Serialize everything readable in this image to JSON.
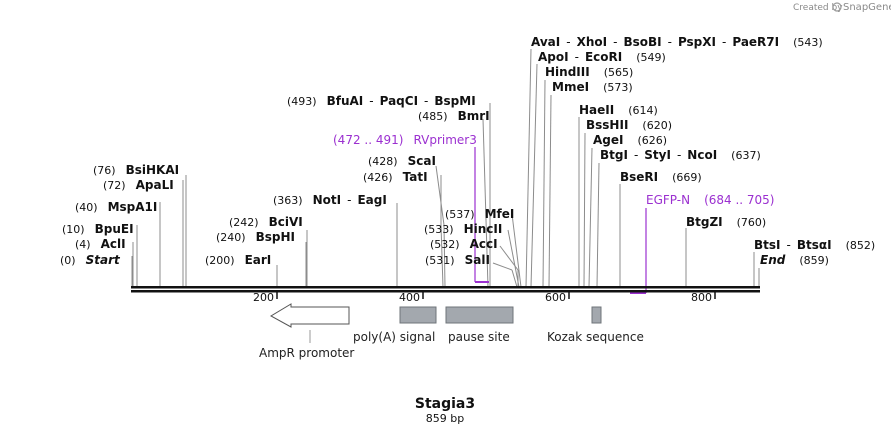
{
  "brand": {
    "created_by": "Created by",
    "name": "SnapGene"
  },
  "title": "Stagia3",
  "length": "859 bp",
  "ticks": [
    "200",
    "400",
    "600",
    "800"
  ],
  "sites": [
    {
      "id": "start",
      "pos": "(0)",
      "names": [
        "Start"
      ],
      "italic": true
    },
    {
      "id": "acli",
      "pos": "(4)",
      "names": [
        "AclI"
      ]
    },
    {
      "id": "bpuei",
      "pos": "(10)",
      "names": [
        "BpuEI"
      ]
    },
    {
      "id": "mspa1i",
      "pos": "(40)",
      "names": [
        "MspA1I"
      ]
    },
    {
      "id": "apali",
      "pos": "(72)",
      "names": [
        "ApaLI"
      ]
    },
    {
      "id": "bsihkai",
      "pos": "(76)",
      "names": [
        "BsiHKAI"
      ]
    },
    {
      "id": "eari",
      "pos": "(200)",
      "names": [
        "EarI"
      ]
    },
    {
      "id": "bsphi",
      "pos": "(240)",
      "names": [
        "BspHI"
      ]
    },
    {
      "id": "bcivi",
      "pos": "(242)",
      "names": [
        "BciVI"
      ]
    },
    {
      "id": "noti",
      "pos": "(363)",
      "names": [
        "NotI",
        "EagI"
      ]
    },
    {
      "id": "tati",
      "pos": "(426)",
      "names": [
        "TatI"
      ]
    },
    {
      "id": "scai",
      "pos": "(428)",
      "names": [
        "ScaI"
      ]
    },
    {
      "id": "bmri",
      "pos": "(485)",
      "names": [
        "BmrI"
      ]
    },
    {
      "id": "bfuai",
      "pos": "(493)",
      "names": [
        "BfuAI",
        "PaqCI",
        "BspMI"
      ]
    },
    {
      "id": "sali",
      "pos": "(531)",
      "names": [
        "SalI"
      ]
    },
    {
      "id": "acci",
      "pos": "(532)",
      "names": [
        "AccI"
      ]
    },
    {
      "id": "hincii",
      "pos": "(533)",
      "names": [
        "HincII"
      ]
    },
    {
      "id": "mfei",
      "pos": "(537)",
      "names": [
        "MfeI"
      ]
    },
    {
      "id": "avai",
      "pos": "(543)",
      "names": [
        "AvaI",
        "XhoI",
        "BsoBI",
        "PspXI",
        "PaeR7I"
      ]
    },
    {
      "id": "apoi",
      "pos": "(549)",
      "names": [
        "ApoI",
        "EcoRI"
      ]
    },
    {
      "id": "hindiii",
      "pos": "(565)",
      "names": [
        "HindIII"
      ]
    },
    {
      "id": "mmei",
      "pos": "(573)",
      "names": [
        "MmeI"
      ]
    },
    {
      "id": "haeii",
      "pos": "(614)",
      "names": [
        "HaeII"
      ]
    },
    {
      "id": "bsshii",
      "pos": "(620)",
      "names": [
        "BssHII"
      ]
    },
    {
      "id": "agei",
      "pos": "(626)",
      "names": [
        "AgeI"
      ]
    },
    {
      "id": "btgi",
      "pos": "(637)",
      "names": [
        "BtgI",
        "StyI",
        "NcoI"
      ]
    },
    {
      "id": "bseri",
      "pos": "(669)",
      "names": [
        "BseRI"
      ]
    },
    {
      "id": "btgzi",
      "pos": "(760)",
      "names": [
        "BtgZI"
      ]
    },
    {
      "id": "btsi",
      "pos": "(852)",
      "names": [
        "BtsI",
        "BtsαI"
      ]
    },
    {
      "id": "end",
      "pos": "(859)",
      "names": [
        "End"
      ],
      "italic": true
    }
  ],
  "primers": [
    {
      "id": "rvprimer3",
      "name": "RVprimer3",
      "range": "(472 .. 491)"
    },
    {
      "id": "egfp-n",
      "name": "EGFP-N",
      "range": "(684 .. 705)"
    }
  ],
  "features": [
    {
      "id": "ampr-promoter",
      "label": "AmpR promoter"
    },
    {
      "id": "polya-signal",
      "label": "poly(A) signal"
    },
    {
      "id": "pause-site",
      "label": "pause site"
    },
    {
      "id": "kozak-sequence",
      "label": "Kozak sequence"
    }
  ],
  "colors": {
    "primer": "#9b30d0",
    "feature_fill": "#a3a8ae",
    "feature_stroke": "#6f747a",
    "backbone": "#111111"
  }
}
